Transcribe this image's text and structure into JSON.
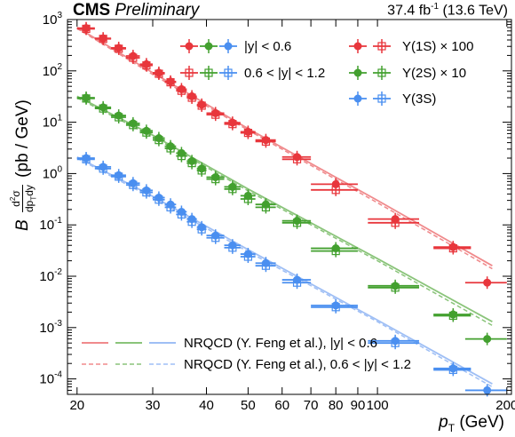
{
  "header": {
    "experiment": "CMS",
    "status": "Preliminary",
    "lumi": "37.4 fb",
    "lumi_exp": "-1",
    "energy": "(13.6 TeV)"
  },
  "axis_labels": {
    "y_main": "B",
    "y_unit": "(pb / GeV)",
    "x_main": "p",
    "x_sub": "T",
    "x_unit": "(GeV)"
  },
  "legend": {
    "rap_low": "|y| < 0.6",
    "rap_high": "0.6 < |y| < 1.2",
    "state_1s": "Υ(1S) × 100",
    "state_2s": "Υ(2S) × 10",
    "state_3s": "Υ(3S)",
    "theory_low": "NRQCD (Y. Feng et al.), |y| < 0.6",
    "theory_high": "NRQCD (Y. Feng et al.), 0.6 < |y| < 1.2"
  },
  "colors": {
    "s1": "#e8363c",
    "s2": "#43a02f",
    "s3": "#4a8ff0",
    "s1_line": "#f08a8c",
    "s2_line": "#8ac47a",
    "s3_line": "#9fbff5"
  },
  "chart_data": {
    "type": "scatter",
    "x_scale": "log",
    "y_scale": "log",
    "xlim": [
      19,
      205
    ],
    "ylim": [
      5e-05,
      1000
    ],
    "x_ticks": [
      20,
      30,
      40,
      50,
      60,
      70,
      80,
      90,
      100,
      200
    ],
    "x_tick_labels": [
      "20",
      "30",
      "40",
      "50",
      "60",
      "70",
      "80",
      "90",
      "100",
      "200"
    ],
    "y_tick_exponents": [
      -4,
      -3,
      -2,
      -1,
      0,
      1,
      2,
      3
    ],
    "xlabel": "pT (GeV)",
    "ylabel": "B d²σ/dpTdy (pb / GeV)",
    "series": [
      {
        "name": "Υ(1S) × 100, |y| < 0.6",
        "x": [
          21,
          23,
          25,
          27,
          29,
          31,
          33,
          35,
          37,
          39,
          42,
          46,
          50,
          55,
          65,
          80,
          110,
          150,
          180
        ],
        "xerr": [
          1,
          1,
          1,
          1,
          1,
          1,
          1,
          1,
          1,
          1,
          2,
          2,
          2,
          3,
          5,
          10,
          15,
          15,
          20
        ],
        "y": [
          680,
          430,
          280,
          195,
          135,
          92,
          62,
          44,
          32,
          22,
          15,
          9.8,
          6.5,
          4.5,
          2.1,
          0.62,
          0.13,
          0.037,
          0.0075
        ]
      },
      {
        "name": "Υ(1S) × 100, 0.6 < |y| < 1.2",
        "x": [
          21,
          23,
          25,
          27,
          29,
          31,
          33,
          35,
          37,
          39,
          42,
          46,
          50,
          55,
          65,
          80,
          110,
          150
        ],
        "y": [
          660,
          420,
          270,
          180,
          128,
          88,
          60,
          41,
          30,
          21,
          14,
          9.2,
          6.2,
          4.2,
          1.9,
          0.48,
          0.11,
          0.035
        ]
      },
      {
        "name": "Υ(2S) × 10, |y| < 0.6",
        "x": [
          21,
          23,
          25,
          27,
          29,
          31,
          33,
          35,
          37,
          39,
          42,
          46,
          50,
          55,
          65,
          80,
          110,
          150,
          180
        ],
        "y": [
          30,
          19.5,
          13.5,
          9.5,
          6.8,
          4.9,
          3.4,
          2.5,
          1.75,
          1.25,
          0.85,
          0.55,
          0.37,
          0.25,
          0.12,
          0.035,
          0.0065,
          0.0018,
          0.0006
        ]
      },
      {
        "name": "Υ(2S) × 10, 0.6 < |y| < 1.2",
        "x": [
          21,
          23,
          25,
          27,
          29,
          31,
          33,
          35,
          37,
          39,
          42,
          46,
          50,
          55,
          65,
          80,
          110,
          150
        ],
        "y": [
          29,
          18.5,
          12.5,
          8.8,
          6.3,
          4.5,
          3.1,
          2.2,
          1.6,
          1.15,
          0.78,
          0.5,
          0.32,
          0.22,
          0.11,
          0.031,
          0.006,
          0.0017
        ]
      },
      {
        "name": "Υ(3S), |y| < 0.6",
        "x": [
          21,
          23,
          25,
          27,
          29,
          31,
          33,
          35,
          37,
          39,
          42,
          46,
          50,
          55,
          65,
          80,
          110,
          150,
          180
        ],
        "y": [
          2.0,
          1.35,
          0.93,
          0.65,
          0.47,
          0.34,
          0.25,
          0.18,
          0.13,
          0.09,
          0.062,
          0.04,
          0.027,
          0.018,
          0.0085,
          0.0027,
          0.00055,
          0.00016,
          6e-05
        ]
      },
      {
        "name": "Υ(3S), 0.6 < |y| < 1.2",
        "x": [
          21,
          23,
          25,
          27,
          29,
          31,
          33,
          35,
          37,
          39,
          42,
          46,
          50,
          55,
          65,
          80,
          110,
          150
        ],
        "y": [
          1.9,
          1.25,
          0.87,
          0.6,
          0.43,
          0.31,
          0.22,
          0.16,
          0.115,
          0.082,
          0.056,
          0.036,
          0.024,
          0.016,
          0.0075,
          0.0025,
          0.0005,
          0.00015
        ]
      }
    ],
    "theory": [
      {
        "state": "1S",
        "x": [
          20,
          30,
          50,
          100,
          185
        ],
        "y_low": [
          700,
          92,
          7.5,
          0.3,
          0.016
        ],
        "y_high": [
          670,
          85,
          7.0,
          0.27,
          0.014
        ]
      },
      {
        "state": "2S",
        "x": [
          20,
          30,
          50,
          100,
          185
        ],
        "y_low": [
          32,
          5.6,
          0.5,
          0.022,
          0.0013
        ],
        "y_high": [
          30,
          5.2,
          0.46,
          0.02,
          0.0011
        ]
      },
      {
        "state": "3S",
        "x": [
          20,
          30,
          50,
          100,
          185
        ],
        "y_low": [
          2.1,
          0.36,
          0.033,
          0.0014,
          8e-05
        ],
        "y_high": [
          2.0,
          0.33,
          0.03,
          0.0013,
          7e-05
        ]
      }
    ]
  }
}
